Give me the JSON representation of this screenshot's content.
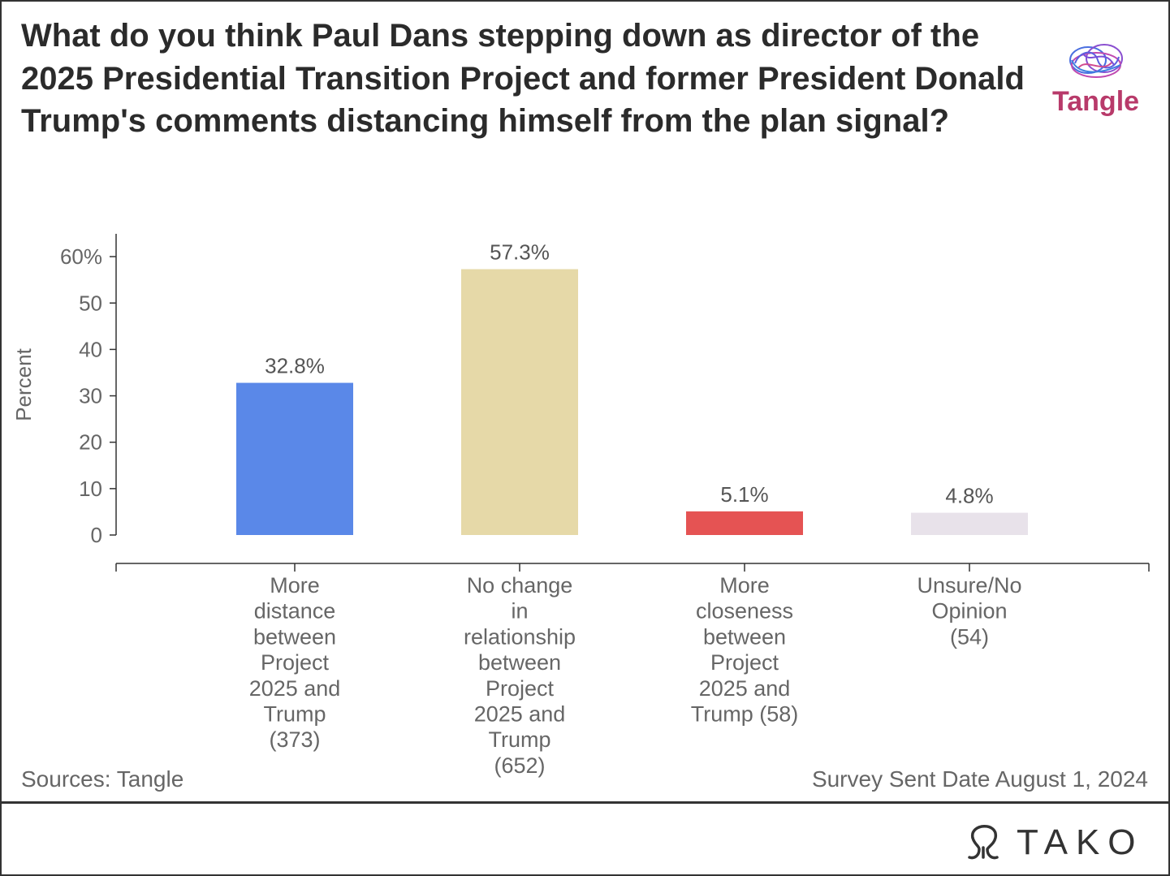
{
  "title": "What do you think Paul Dans stepping down as director of the 2025 Presidential Transition Project and former President Donald Trump's comments distancing himself from the plan signal?",
  "source": "Sources: Tangle",
  "survey_date": "Survey Sent Date August 1, 2024",
  "logos": {
    "tangle": {
      "text": "Tangle",
      "icon": "brain-icon"
    },
    "tako": {
      "text": "TAKO",
      "icon": "octopus-icon"
    }
  },
  "chart_data": {
    "type": "bar",
    "ylabel": "Percent",
    "ylim": [
      0,
      65
    ],
    "y_ticks": [
      0,
      10,
      20,
      30,
      40,
      50,
      60
    ],
    "y_tick_labels": [
      "0",
      "10",
      "20",
      "30",
      "40",
      "50",
      "60%"
    ],
    "categories": [
      [
        "More",
        "distance",
        "between",
        "Project",
        "2025 and",
        "Trump",
        "(373)"
      ],
      [
        "No change",
        "in",
        "relationship",
        "between",
        "Project",
        "2025 and",
        "Trump",
        "(652)"
      ],
      [
        "More",
        "closeness",
        "between",
        "Project",
        "2025 and",
        "Trump (58)"
      ],
      [
        "Unsure/No",
        "Opinion",
        "(54)"
      ]
    ],
    "values": [
      32.8,
      57.3,
      5.1,
      4.8
    ],
    "data_labels": [
      "32.8%",
      "57.3%",
      "5.1%",
      "4.8%"
    ],
    "colors": [
      "#5a88e8",
      "#e6d9a8",
      "#e55353",
      "#e8e2ea"
    ],
    "grid": false,
    "legend": "none"
  }
}
